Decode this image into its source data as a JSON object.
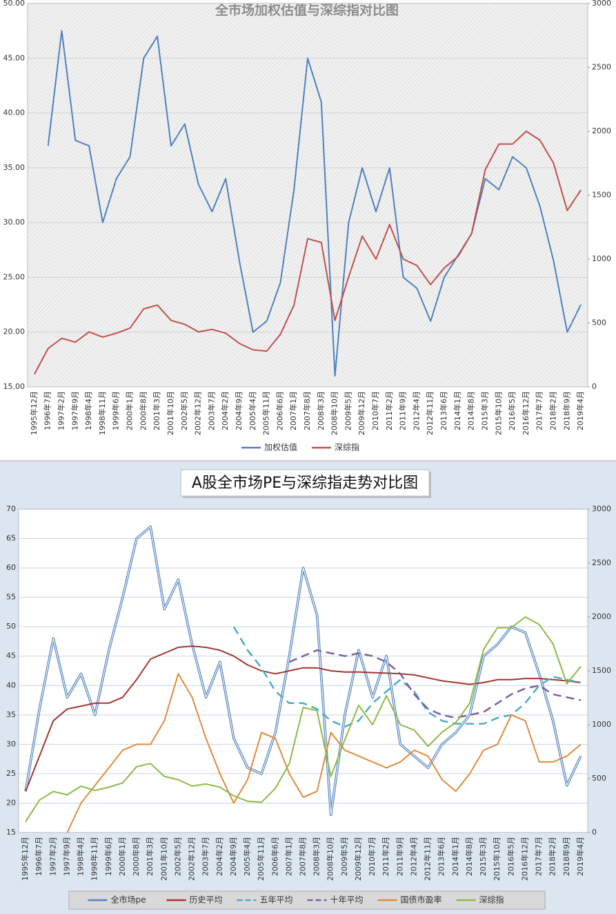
{
  "chart_data": [
    {
      "type": "line",
      "title": "全市场加权估值与深综指对比图",
      "categories": [
        "1995年12月",
        "1996年7月",
        "1997年2月",
        "1997年9月",
        "1998年4月",
        "1998年11月",
        "1999年6月",
        "2000年1月",
        "2000年8月",
        "2001年3月",
        "2001年10月",
        "2002年5月",
        "2002年12月",
        "2003年7月",
        "2004年2月",
        "2004年9月",
        "2005年4月",
        "2005年11月",
        "2006年6月",
        "2007年1月",
        "2007年8月",
        "2008年3月",
        "2008年10月",
        "2009年5月",
        "2009年12月",
        "2010年7月",
        "2011年2月",
        "2011年9月",
        "2012年4月",
        "2012年11月",
        "2013年6月",
        "2014年1月",
        "2014年8月",
        "2015年3月",
        "2015年10月",
        "2016年5月",
        "2016年12月",
        "2017年7月",
        "2018年2月",
        "2018年9月",
        "2019年4月"
      ],
      "series": [
        {
          "name": "加权估值",
          "color": "#4f81bd",
          "values": [
            null,
            37,
            47.5,
            37.5,
            37,
            30,
            34,
            36,
            45,
            47,
            37,
            39,
            33.5,
            31,
            34,
            26.5,
            20,
            21,
            24.5,
            33,
            45,
            41,
            16,
            30,
            35,
            31,
            35,
            25,
            24,
            21,
            25,
            27,
            29,
            34,
            33,
            36,
            35,
            31.5,
            26.5,
            20,
            22.5
          ]
        },
        {
          "name": "深综指",
          "color": "#c0504d",
          "axis": "y2",
          "values": [
            100,
            300,
            380,
            350,
            430,
            390,
            420,
            460,
            610,
            640,
            520,
            490,
            430,
            450,
            420,
            340,
            290,
            280,
            410,
            640,
            1160,
            1130,
            520,
            860,
            1180,
            1000,
            1270,
            1000,
            950,
            800,
            930,
            1020,
            1200,
            1700,
            1900,
            1900,
            2000,
            1930,
            1750,
            1380,
            1540
          ]
        }
      ],
      "ylim": [
        15,
        50
      ],
      "yticks": [
        {
          "value": 15,
          "label": "15.00"
        },
        {
          "value": 20,
          "label": "20.00"
        },
        {
          "value": 25,
          "label": "25.00"
        },
        {
          "value": 30,
          "label": "30.00"
        },
        {
          "value": 35,
          "label": "35.00"
        },
        {
          "value": 40,
          "label": "40.00"
        },
        {
          "value": 45,
          "label": "45.00"
        },
        {
          "value": 50,
          "label": "50.00"
        }
      ],
      "y2lim": [
        0,
        3000
      ],
      "y2ticks": [
        0,
        500,
        1000,
        1500,
        2000,
        2500,
        3000
      ],
      "grid": true,
      "legend": "bottom"
    },
    {
      "type": "line",
      "title": "A股全市场PE与深综指走势对比图",
      "categories": [
        "1995年12月",
        "1996年7月",
        "1997年2月",
        "1997年9月",
        "1998年4月",
        "1998年11月",
        "1999年6月",
        "2000年1月",
        "2000年8月",
        "2001年3月",
        "2001年10月",
        "2002年5月",
        "2002年12月",
        "2003年7月",
        "2004年2月",
        "2004年9月",
        "2005年4月",
        "2005年11月",
        "2006年6月",
        "2007年1月",
        "2007年8月",
        "2008年3月",
        "2008年10月",
        "2009年5月",
        "2009年12月",
        "2010年7月",
        "2011年2月",
        "2011年9月",
        "2012年4月",
        "2012年11月",
        "2013年6月",
        "2014年1月",
        "2014年8月",
        "2015年3月",
        "2015年10月",
        "2016年5月",
        "2016年12月",
        "2017年7月",
        "2018年2月",
        "2018年9月",
        "2019年4月"
      ],
      "series": [
        {
          "name": "全市场pe",
          "color": "#4f81bd",
          "style": "double",
          "values": [
            22,
            36,
            48,
            38,
            42,
            35,
            46,
            55,
            65,
            67,
            53,
            58,
            47,
            38,
            44,
            31,
            26,
            25,
            32,
            45,
            60,
            52,
            18,
            35,
            46,
            38,
            45,
            30,
            28,
            26,
            30,
            32,
            35,
            45,
            47,
            50,
            49,
            42,
            34,
            23,
            28
          ]
        },
        {
          "name": "历史平均",
          "color": "#a5332d",
          "values": [
            22,
            28,
            34,
            36,
            36.5,
            37,
            37,
            38,
            41,
            44.5,
            45.5,
            46.5,
            46.7,
            46.5,
            46,
            45,
            43.5,
            42.5,
            42,
            42.5,
            43,
            43,
            42.5,
            42.3,
            42.3,
            42.2,
            42.1,
            42,
            41.8,
            41.3,
            40.8,
            40.5,
            40.2,
            40.5,
            41,
            41,
            41.2,
            41.2,
            41,
            40.8,
            40.5
          ]
        },
        {
          "name": "五年平均",
          "color": "#4bacc6",
          "style": "dashed",
          "values": [
            null,
            null,
            null,
            null,
            null,
            null,
            null,
            null,
            null,
            null,
            null,
            null,
            null,
            null,
            null,
            50,
            46,
            43,
            39,
            37,
            37,
            36,
            34,
            33,
            34,
            37,
            39,
            41,
            39,
            35.5,
            34,
            33.5,
            33.5,
            33.5,
            34.5,
            35,
            37,
            40,
            41.5,
            41,
            40.5
          ]
        },
        {
          "name": "十年平均",
          "color": "#7f5fa0",
          "style": "dashed",
          "values": [
            null,
            null,
            null,
            null,
            null,
            null,
            null,
            null,
            null,
            null,
            null,
            null,
            null,
            null,
            null,
            null,
            null,
            null,
            null,
            44,
            45,
            46,
            45.5,
            45,
            45.5,
            45,
            44,
            42,
            38.5,
            36,
            35,
            34.5,
            35,
            35.5,
            37,
            38.5,
            39.5,
            40,
            38.5,
            38,
            37.5
          ]
        },
        {
          "name": "国债市盈率",
          "color": "#e3893a",
          "values": [
            null,
            null,
            null,
            15,
            20,
            23,
            26,
            29,
            30,
            30,
            34,
            42,
            38,
            31,
            25,
            20,
            24,
            32,
            31,
            25,
            21,
            22,
            32,
            29,
            28,
            27,
            26,
            27,
            29,
            28,
            24,
            22,
            25,
            29,
            30,
            35,
            34,
            27,
            27,
            28,
            30
          ]
        },
        {
          "name": "深综指",
          "color": "#8db943",
          "axis": "y2",
          "values": [
            100,
            300,
            380,
            350,
            430,
            390,
            420,
            460,
            610,
            640,
            520,
            490,
            430,
            450,
            420,
            340,
            290,
            280,
            410,
            640,
            1160,
            1130,
            520,
            860,
            1180,
            1000,
            1270,
            1000,
            950,
            800,
            930,
            1020,
            1200,
            1700,
            1900,
            1900,
            2000,
            1930,
            1750,
            1380,
            1540
          ]
        }
      ],
      "ylim": [
        15,
        70
      ],
      "yticks": [
        15,
        20,
        25,
        30,
        35,
        40,
        45,
        50,
        55,
        60,
        65,
        70
      ],
      "y2lim": [
        0,
        3000
      ],
      "y2ticks": [
        0,
        500,
        1000,
        1500,
        2000,
        2500,
        3000
      ],
      "grid": true,
      "legend": "bottom"
    }
  ]
}
